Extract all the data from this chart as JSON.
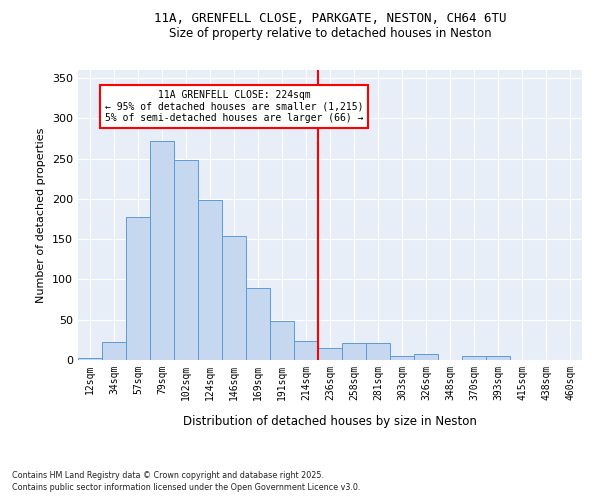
{
  "title_line1": "11A, GRENFELL CLOSE, PARKGATE, NESTON, CH64 6TU",
  "title_line2": "Size of property relative to detached houses in Neston",
  "xlabel": "Distribution of detached houses by size in Neston",
  "ylabel": "Number of detached properties",
  "bar_labels": [
    "12sqm",
    "34sqm",
    "57sqm",
    "79sqm",
    "102sqm",
    "124sqm",
    "146sqm",
    "169sqm",
    "191sqm",
    "214sqm",
    "236sqm",
    "258sqm",
    "281sqm",
    "303sqm",
    "326sqm",
    "348sqm",
    "370sqm",
    "393sqm",
    "415sqm",
    "438sqm",
    "460sqm"
  ],
  "bar_heights": [
    2,
    22,
    178,
    272,
    248,
    199,
    154,
    90,
    48,
    23,
    15,
    21,
    21,
    5,
    7,
    0,
    5,
    5,
    0,
    0,
    0
  ],
  "bar_color": "#c5d8f0",
  "bar_edge_color": "#5b9bd5",
  "bg_color": "#e8eef8",
  "grid_color": "#ffffff",
  "vline_x_index": 9.5,
  "vline_color": "red",
  "annotation_text": "11A GRENFELL CLOSE: 224sqm\n← 95% of detached houses are smaller (1,215)\n5% of semi-detached houses are larger (66) →",
  "annotation_box_color": "white",
  "annotation_box_edge": "red",
  "ylim": [
    0,
    360
  ],
  "yticks": [
    0,
    50,
    100,
    150,
    200,
    250,
    300,
    350
  ],
  "footer_line1": "Contains HM Land Registry data © Crown copyright and database right 2025.",
  "footer_line2": "Contains public sector information licensed under the Open Government Licence v3.0."
}
